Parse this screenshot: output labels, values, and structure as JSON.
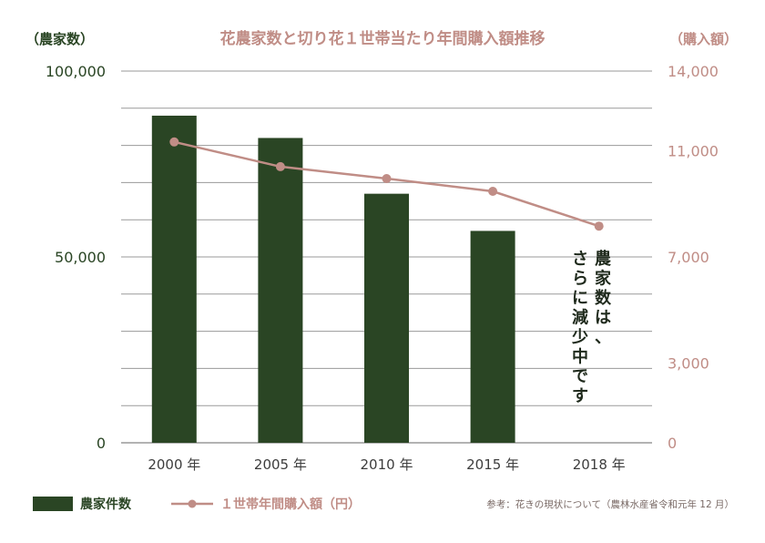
{
  "chart_data": {
    "type": "bar",
    "title": "花農家数と切り花１世帯当たり年間購入額推移",
    "left_axis_label": "（農家数）",
    "right_axis_label": "（購入額）",
    "categories": [
      "2000 年",
      "2005 年",
      "2010 年",
      "2015 年",
      "2018 年"
    ],
    "left_ylim": [
      0,
      100000
    ],
    "left_ticks": [
      "0",
      "50,000",
      "100,000"
    ],
    "right_ylim": [
      0,
      14000
    ],
    "right_ticks": [
      "0",
      "3,000",
      "7,000",
      "11,000",
      "14,000"
    ],
    "grid": true,
    "legend_position": "bottom-left",
    "series": [
      {
        "name": "農家件数",
        "type": "bar",
        "axis": "left",
        "color": "#2a4524",
        "values": [
          88000,
          82000,
          67000,
          57000,
          null
        ]
      },
      {
        "name": "１世帯年間購入額（円）",
        "type": "line",
        "axis": "right",
        "color": "#c08d86",
        "values": [
          11330,
          10400,
          9950,
          9470,
          8160
        ]
      }
    ],
    "annotation": [
      "農家数は、",
      "さらに減少中です"
    ],
    "source": "参考：花きの現状について（農林水産省令和元年 12 月）"
  },
  "colors": {
    "bar": "#2a4524",
    "line": "#c08d86",
    "title": "#c08d86",
    "left_axis_text": "#2a4524",
    "right_axis_text": "#c08d86",
    "grid": "#9a9a9a",
    "source_text": "#7a6a66"
  }
}
